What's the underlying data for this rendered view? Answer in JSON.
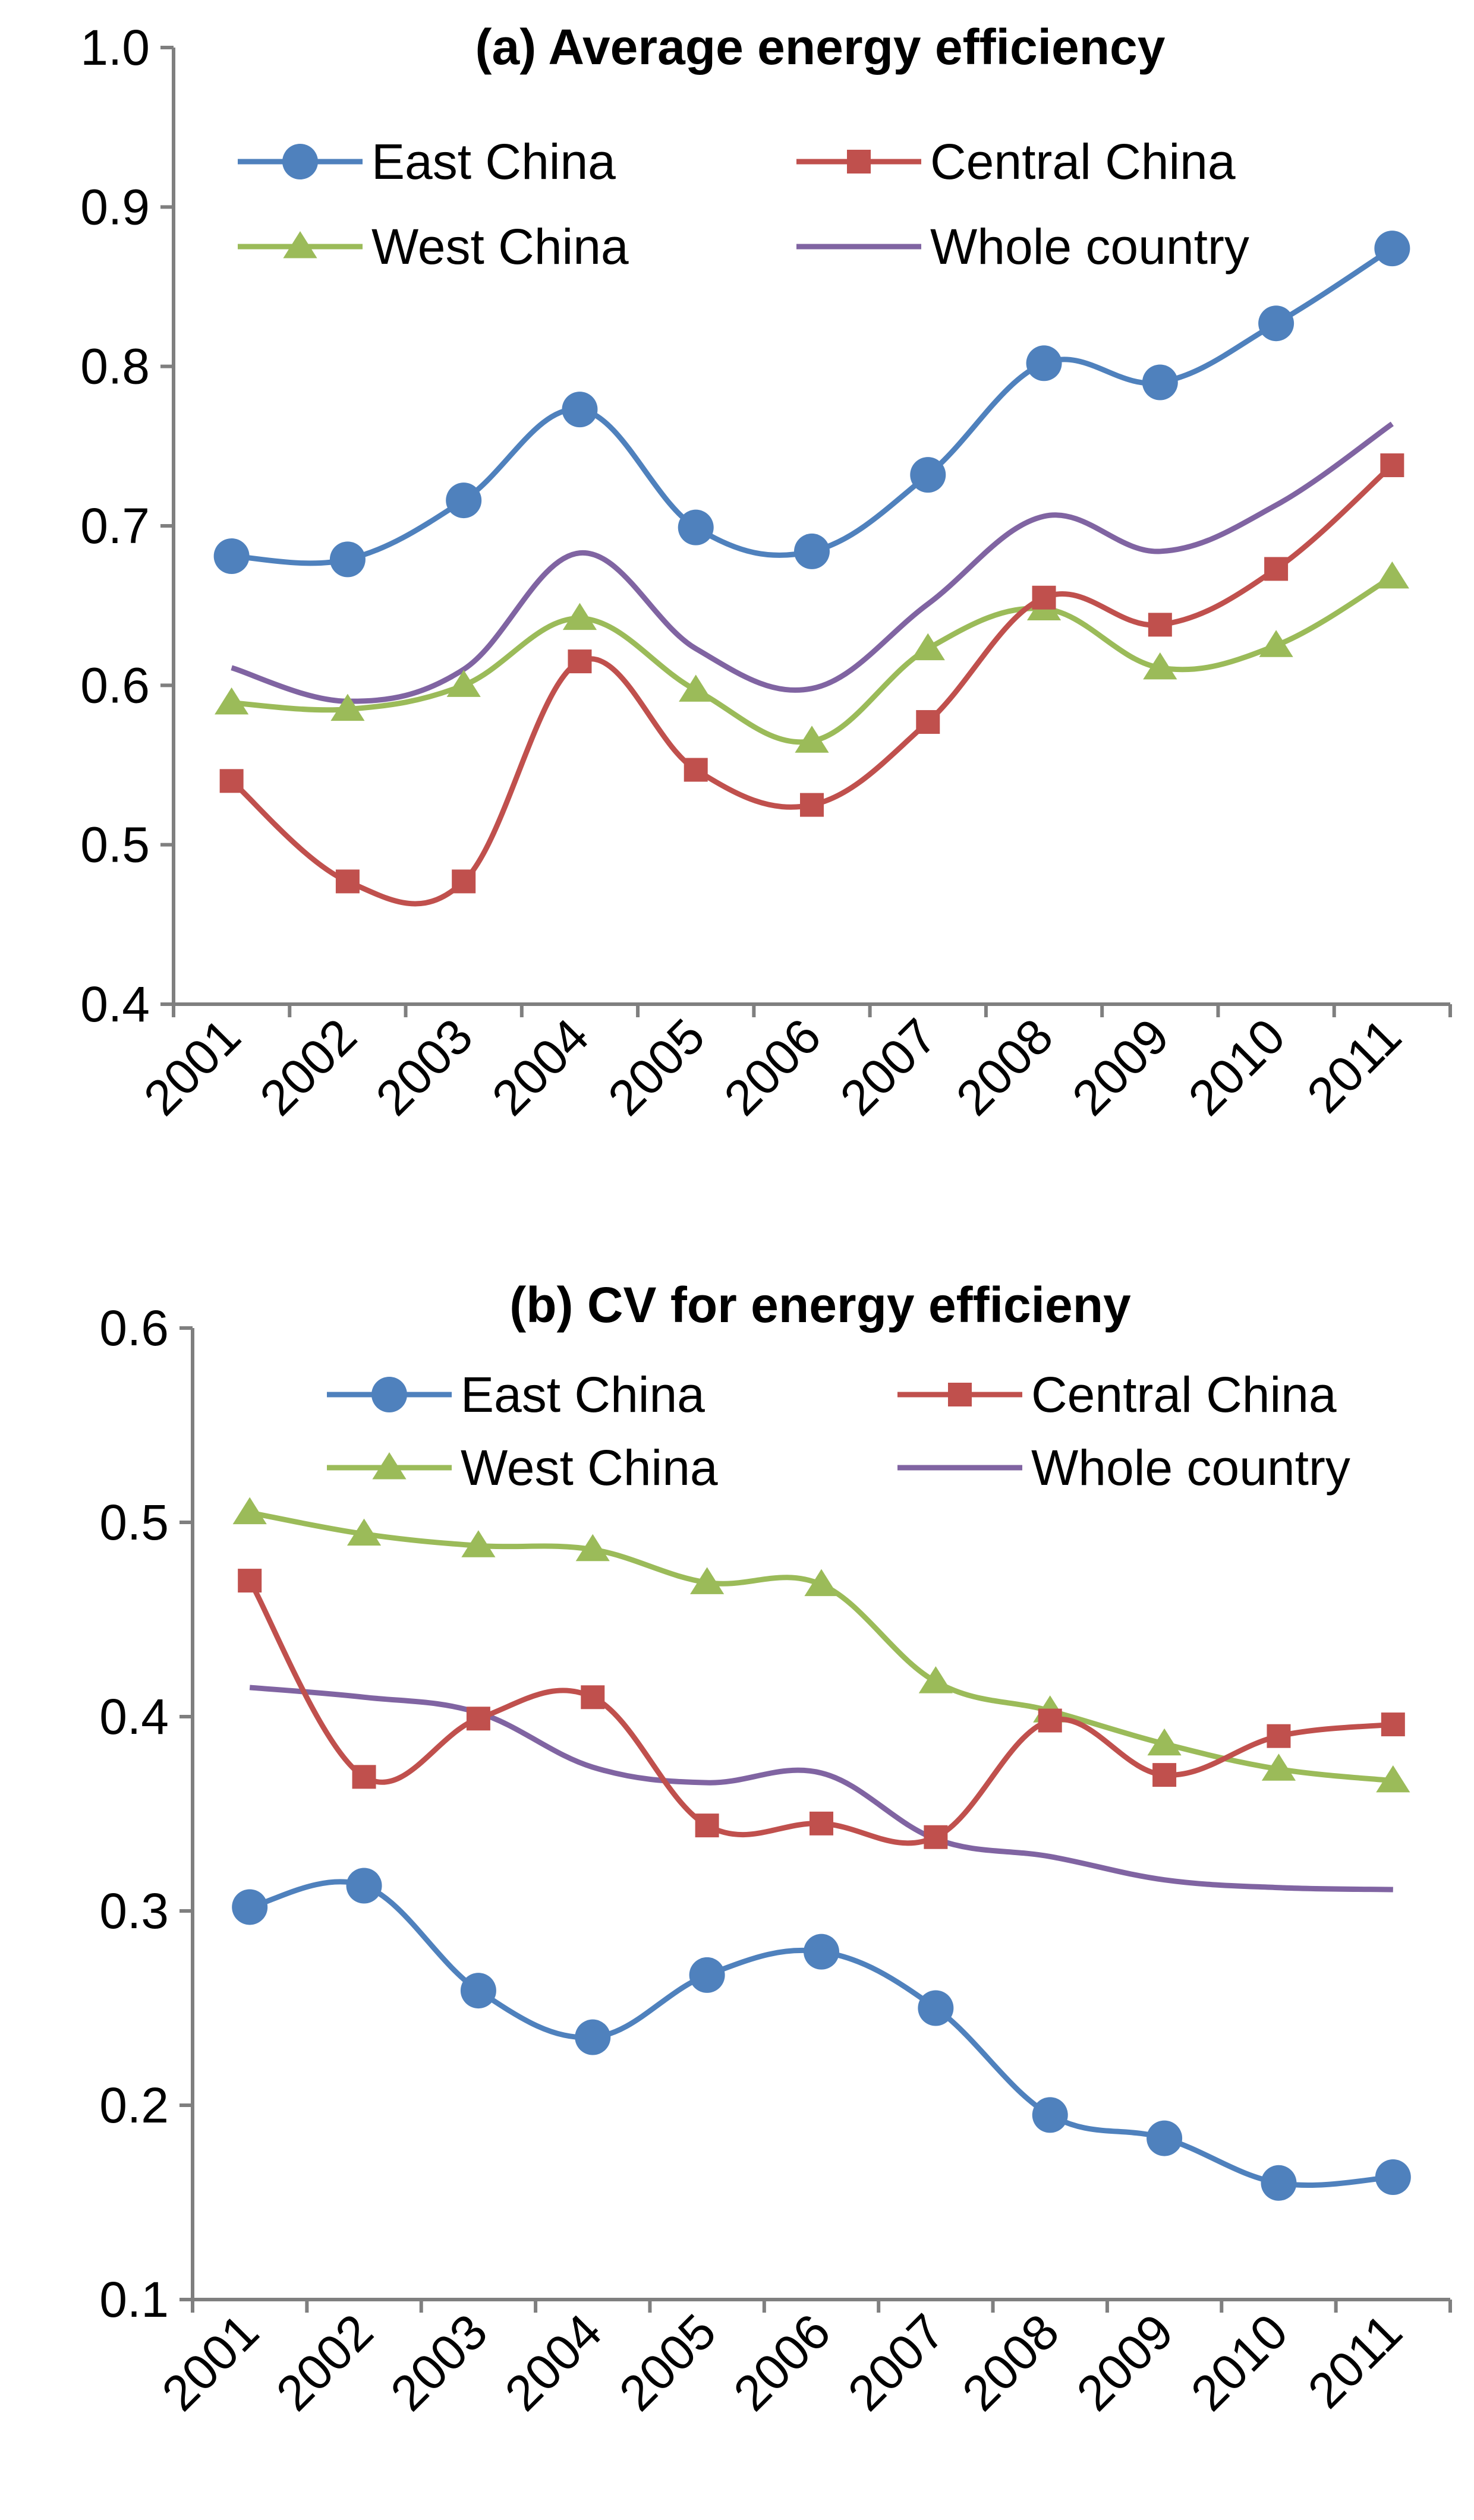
{
  "chart_data": [
    {
      "type": "line",
      "title": "(a) Average energy efficiency",
      "xlabel": "",
      "ylabel": "",
      "ylim": [
        0.4,
        1.0
      ],
      "yticks": [
        "0.4",
        "0.5",
        "0.6",
        "0.7",
        "0.8",
        "0.9",
        "1.0"
      ],
      "categories": [
        "2001",
        "2002",
        "2003",
        "2004",
        "2005",
        "2006",
        "2007",
        "2008",
        "2009",
        "2010",
        "2011"
      ],
      "legend_position": "top",
      "series": [
        {
          "name": "East China",
          "color": "#4f81bd",
          "marker": "circle",
          "values": [
            0.681,
            0.679,
            0.716,
            0.773,
            0.699,
            0.684,
            0.732,
            0.802,
            0.79,
            0.827,
            0.874
          ]
        },
        {
          "name": "Central China",
          "color": "#c0504d",
          "marker": "square",
          "values": [
            0.54,
            0.477,
            0.477,
            0.615,
            0.547,
            0.525,
            0.577,
            0.655,
            0.638,
            0.673,
            0.738
          ]
        },
        {
          "name": "West China",
          "color": "#9bbb59",
          "marker": "triangle",
          "values": [
            0.589,
            0.585,
            0.6,
            0.642,
            0.597,
            0.565,
            0.623,
            0.648,
            0.611,
            0.625,
            0.668
          ]
        },
        {
          "name": "Whole country",
          "color": "#8064a2",
          "marker": "none",
          "values": [
            0.611,
            0.59,
            0.61,
            0.683,
            0.623,
            0.598,
            0.651,
            0.706,
            0.684,
            0.713,
            0.764
          ]
        }
      ]
    },
    {
      "type": "line",
      "title": "(b) CV for energy efficieny",
      "xlabel": "",
      "ylabel": "",
      "ylim": [
        0.1,
        0.6
      ],
      "yticks": [
        "0.1",
        "0.2",
        "0.3",
        "0.4",
        "0.5",
        "0.6"
      ],
      "categories": [
        "2001",
        "2002",
        "2003",
        "2004",
        "2005",
        "2006",
        "2007",
        "2008",
        "2009",
        "2010",
        "2011"
      ],
      "legend_position": "top",
      "series": [
        {
          "name": "East China",
          "color": "#4f81bd",
          "marker": "circle",
          "values": [
            0.302,
            0.313,
            0.259,
            0.235,
            0.267,
            0.279,
            0.25,
            0.195,
            0.183,
            0.16,
            0.163
          ]
        },
        {
          "name": "Central China",
          "color": "#c0504d",
          "marker": "square",
          "values": [
            0.47,
            0.369,
            0.399,
            0.41,
            0.344,
            0.345,
            0.338,
            0.398,
            0.37,
            0.39,
            0.396
          ]
        },
        {
          "name": "West China",
          "color": "#9bbb59",
          "marker": "triangle",
          "values": [
            0.505,
            0.494,
            0.488,
            0.486,
            0.469,
            0.468,
            0.418,
            0.403,
            0.386,
            0.373,
            0.367
          ]
        },
        {
          "name": "Whole country",
          "color": "#8064a2",
          "marker": "none",
          "values": [
            0.415,
            0.41,
            0.402,
            0.374,
            0.366,
            0.371,
            0.337,
            0.328,
            0.316,
            0.312,
            0.311
          ]
        }
      ]
    }
  ]
}
